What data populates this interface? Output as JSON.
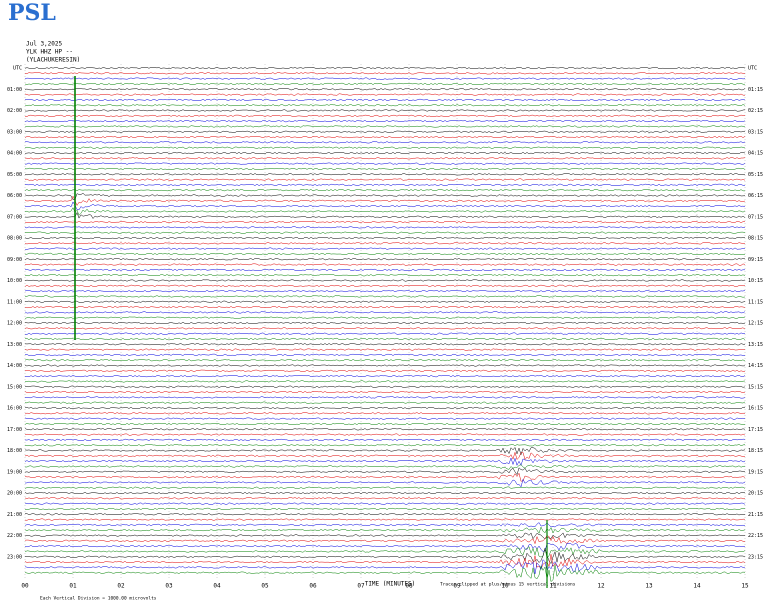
{
  "header": {
    "logo": "PSL",
    "date": "Jul 3,2025",
    "station": "YLK HHZ HP --",
    "location": "(YLACHUKERESIN)"
  },
  "chart": {
    "left_labels": [
      "UTC",
      "01:00",
      "02:00",
      "03:00",
      "04:00",
      "05:00",
      "06:00",
      "07:00",
      "08:00",
      "09:00",
      "10:00",
      "11:00",
      "12:00",
      "13:00",
      "14:00",
      "15:00",
      "16:00",
      "17:00",
      "18:00",
      "19:00",
      "20:00",
      "21:00",
      "22:00",
      "23:00"
    ],
    "right_labels": [
      "UTC",
      "01:15",
      "02:15",
      "03:15",
      "04:15",
      "05:15",
      "06:15",
      "07:15",
      "08:15",
      "09:15",
      "10:15",
      "11:15",
      "12:15",
      "13:15",
      "14:15",
      "15:15",
      "16:15",
      "17:15",
      "18:15",
      "19:15",
      "20:15",
      "21:15",
      "22:15",
      "23:15"
    ],
    "xticks": [
      "00",
      "01",
      "02",
      "03",
      "04",
      "05",
      "06",
      "07",
      "08",
      "09",
      "10",
      "11",
      "12",
      "13",
      "14",
      "15"
    ],
    "x_label": "TIME (MINUTES)",
    "trace_colors": [
      "#000000",
      "#e00000",
      "#0000e0",
      "#008000"
    ]
  },
  "footer": {
    "scale": "Each Vertical Division = 1000.00 microvolts",
    "clip": "Traces clipped at plus/minus 15 vertical divisions"
  }
}
